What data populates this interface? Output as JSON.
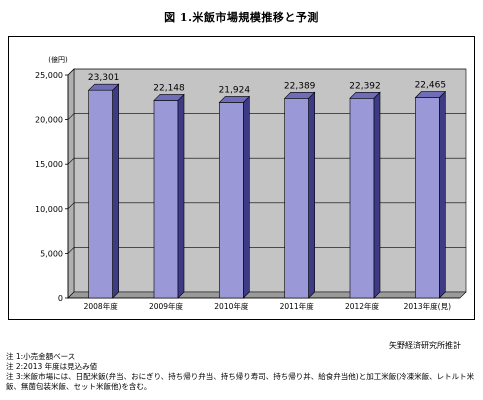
{
  "page": {
    "title": "図 1.米飯市場規模推移と予測",
    "source": "矢野経済研究所推計",
    "notes": [
      "注 1:小売金額ベース",
      "注 2:2013 年度は見込み値",
      "注 3:米飯市場には、日配米飯(弁当、おにぎり、持ち帰り弁当、持ち帰り寿司、持ち帰り丼、給食弁当他)と加工米飯(冷凍米飯、レトルト米飯、無菌包装米飯、セット米飯他)を含む。"
    ]
  },
  "chart_data": {
    "type": "bar",
    "unit_label": "(億円)",
    "categories": [
      "2008年度",
      "2009年度",
      "2010年度",
      "2011年度",
      "2012年度",
      "2013年度(見)"
    ],
    "values": [
      23301,
      22148,
      21924,
      22389,
      22392,
      22465
    ],
    "value_labels": [
      "23,301",
      "22,148",
      "21,924",
      "22,389",
      "22,392",
      "22,465"
    ],
    "ylim": [
      0,
      25000
    ],
    "yticks": [
      0,
      5000,
      10000,
      15000,
      20000,
      25000
    ],
    "ytick_labels": [
      "0",
      "5,000",
      "10,000",
      "15,000",
      "20,000",
      "25,000"
    ],
    "grid": true,
    "colors": {
      "bar_front": "#9a98d6",
      "bar_side": "#3d3a86",
      "bar_top": "#6f6cb8",
      "plot_back": "#c4c4c4",
      "floor": "#9a9a9a",
      "grid": "#000000"
    }
  }
}
